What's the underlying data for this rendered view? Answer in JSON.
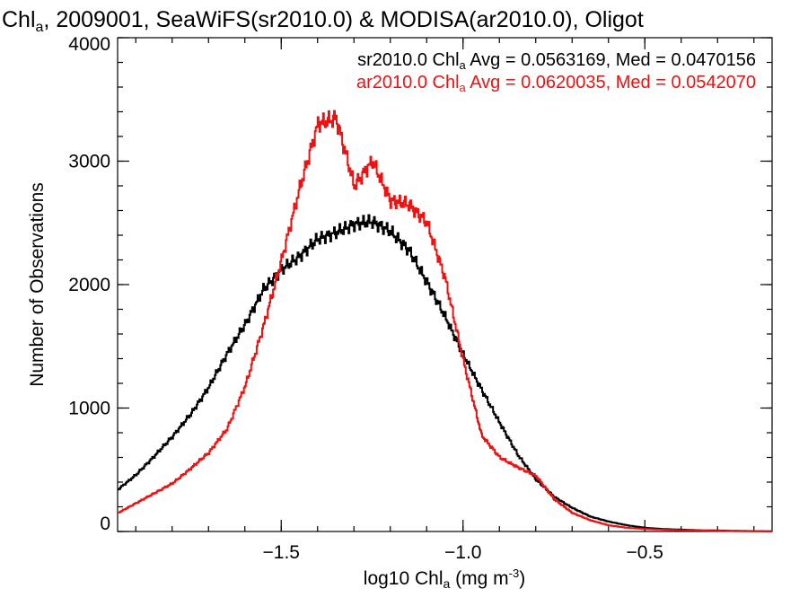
{
  "chart_data": {
    "type": "line",
    "step": true,
    "title": {
      "prefix": "Chl",
      "sub": "a",
      "rest": ", 2009001, SeaWiFS(sr2010.0) & MODISA(ar2010.0), Oligot"
    },
    "xlabel": {
      "prefix": "log10 Chl",
      "sub": "a",
      "middle": " (mg m",
      "sup": "-3",
      "suffix": ")"
    },
    "ylabel": "Number of Observations",
    "xlim": [
      -1.95,
      -0.15
    ],
    "ylim": [
      0,
      4000
    ],
    "xticks": [
      -1.5,
      -1.0,
      -0.5
    ],
    "xtick_labels": [
      "−1.5",
      "−1.0",
      "−0.5"
    ],
    "yticks": [
      0,
      1000,
      2000,
      3000,
      4000
    ],
    "ytick_labels": [
      "0",
      "1000",
      "2000",
      "3000",
      "4000"
    ],
    "x": [
      -1.95,
      -1.9,
      -1.85,
      -1.8,
      -1.75,
      -1.7,
      -1.65,
      -1.6,
      -1.55,
      -1.5,
      -1.45,
      -1.4,
      -1.35,
      -1.3,
      -1.25,
      -1.2,
      -1.15,
      -1.1,
      -1.05,
      -1.0,
      -0.95,
      -0.9,
      -0.85,
      -0.8,
      -0.75,
      -0.7,
      -0.65,
      -0.6,
      -0.55,
      -0.5,
      -0.45,
      -0.4,
      -0.35,
      -0.3,
      -0.25,
      -0.2,
      -0.15
    ],
    "series": [
      {
        "name": "sr2010.0",
        "color": "#000000",
        "legend": {
          "prefix": "sr2010.0 Chl",
          "sub": "a",
          "suffix": " Avg = 0.0563169, Med = 0.0470156"
        },
        "values": [
          340,
          460,
          610,
          770,
          950,
          1170,
          1440,
          1680,
          1960,
          2120,
          2230,
          2370,
          2420,
          2490,
          2510,
          2430,
          2280,
          2020,
          1740,
          1430,
          1150,
          880,
          620,
          420,
          280,
          190,
          120,
          80,
          50,
          30,
          20,
          15,
          10,
          8,
          5,
          3,
          2
        ]
      },
      {
        "name": "ar2010.0",
        "color": "#ee1111",
        "legend": {
          "prefix": "ar2010.0 Chl",
          "sub": "a",
          "suffix": " Avg = 0.0620035, Med = 0.0542070"
        },
        "values": [
          150,
          230,
          310,
          390,
          510,
          640,
          830,
          1180,
          1660,
          2200,
          2780,
          3300,
          3350,
          2800,
          3000,
          2680,
          2650,
          2500,
          2050,
          1380,
          780,
          600,
          520,
          450,
          260,
          150,
          90,
          50,
          30,
          20,
          15,
          10,
          8,
          5,
          3,
          2,
          1
        ]
      }
    ]
  }
}
